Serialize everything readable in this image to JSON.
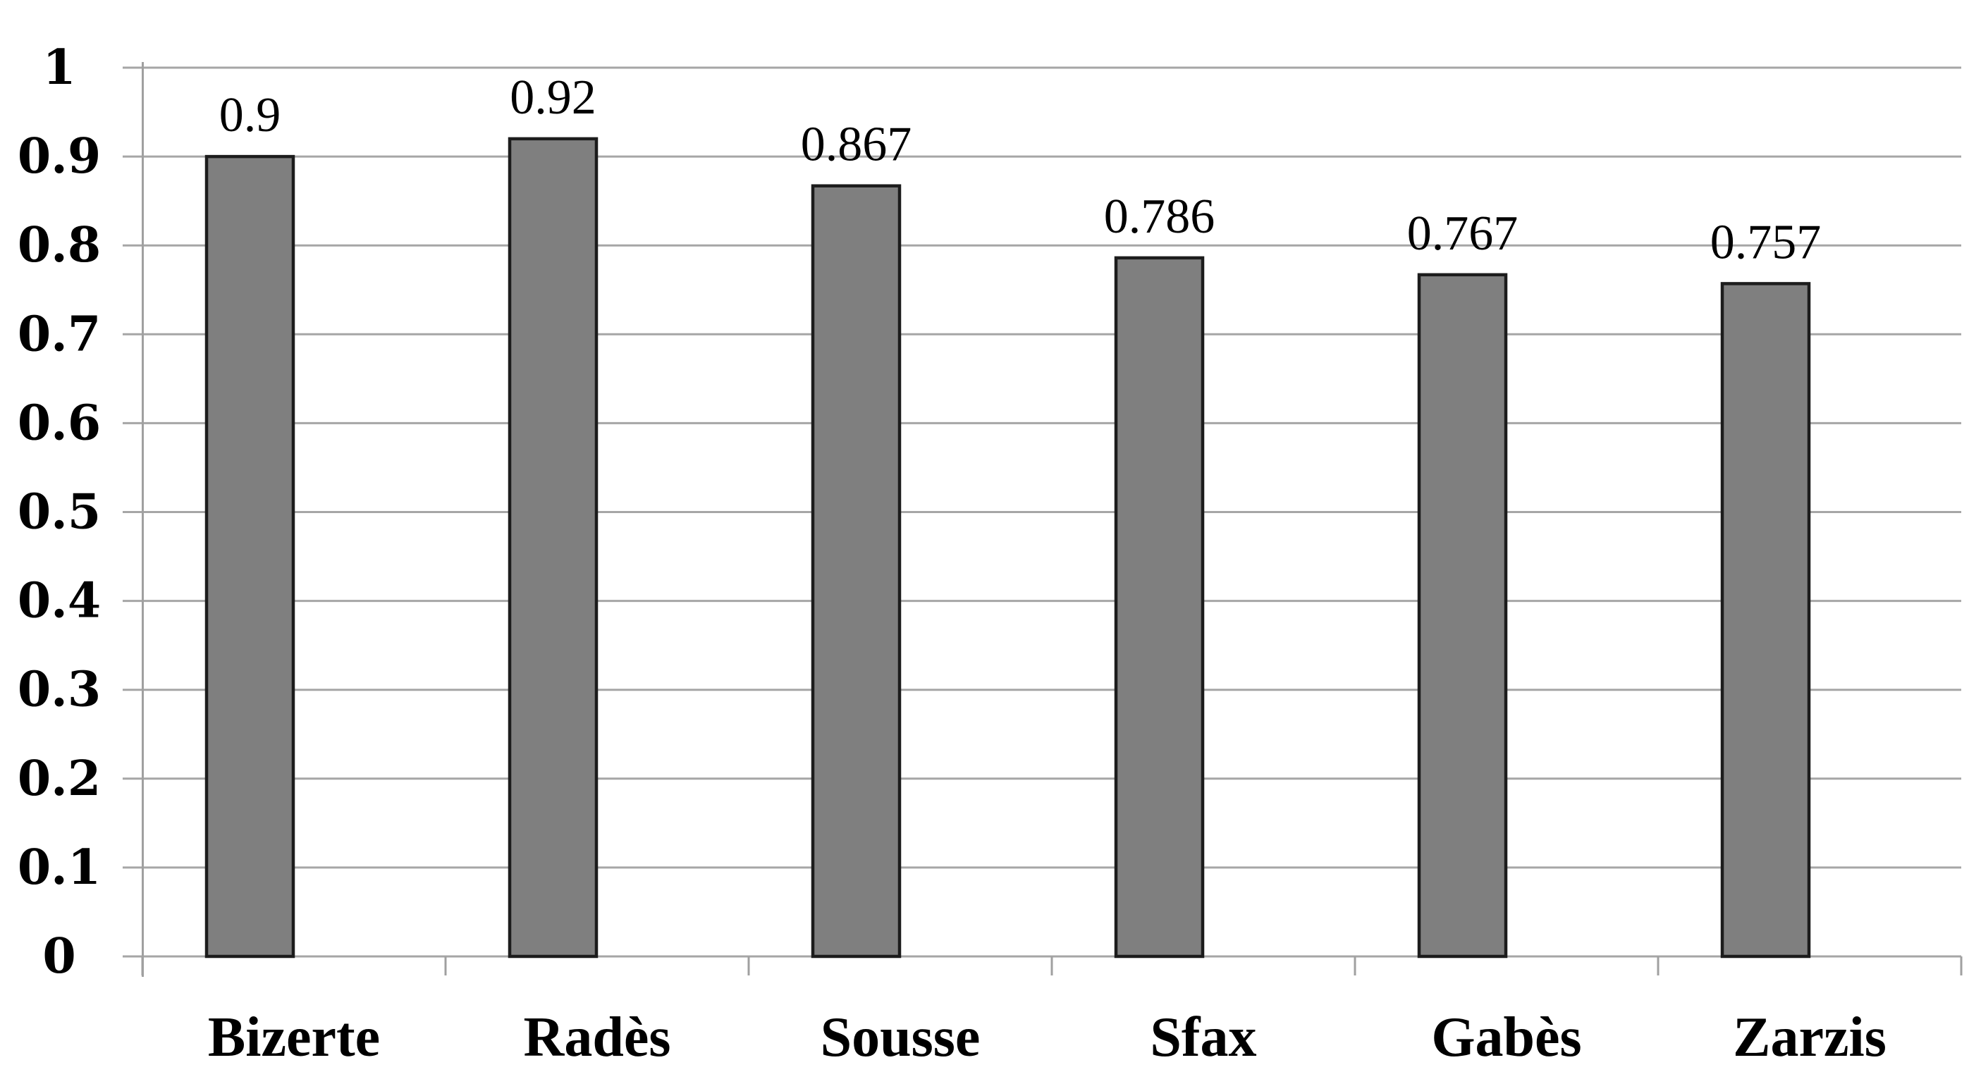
{
  "chart_data": {
    "type": "bar",
    "title": "",
    "xlabel": "",
    "ylabel": "",
    "categories": [
      "Bizerte",
      "Radès",
      "Sousse",
      "Sfax",
      "Gabès",
      "Zarzis"
    ],
    "values": [
      0.9,
      0.92,
      0.867,
      0.786,
      0.767,
      0.757
    ],
    "value_labels": [
      "0.9",
      "0.92",
      "0.867",
      "0.786",
      "0.767",
      "0.757"
    ],
    "ylim": [
      0,
      1
    ],
    "y_tick_step": 0.1,
    "y_tick_labels_bottom_to_top": [
      "0",
      "0.1",
      "0.2",
      "0.3",
      "0.4",
      "0.5",
      "0.6",
      "0.7",
      "0.8",
      "0.9",
      "1"
    ],
    "grid": true,
    "legend": false,
    "layout_hints": {
      "gridlines": "horizontal, full plot width, with short tick overhang left of y-axis",
      "x_ticks": "short ticks below baseline at category boundaries",
      "bar_alignment": "bars sit slightly left of category center",
      "legend_position": "none"
    },
    "colors": {
      "bar_fill": "#7f7f7f",
      "bar_border": "#1c1c1c",
      "gridline": "#a6a6a6",
      "axis_line": "#a0a0a0",
      "text": "#000000",
      "background": "#ffffff"
    }
  }
}
